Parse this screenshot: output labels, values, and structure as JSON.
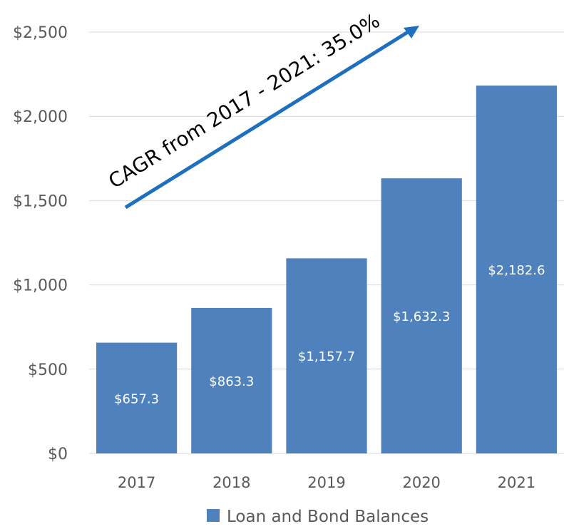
{
  "chart_data": {
    "type": "bar",
    "categories": [
      "2017",
      "2018",
      "2019",
      "2020",
      "2021"
    ],
    "series": [
      {
        "name": "Loan and Bond Balances",
        "values": [
          657.3,
          863.3,
          1157.7,
          1632.3,
          2182.6
        ],
        "labels": [
          "$657.3",
          "$863.3",
          "$1,157.7",
          "$1,632.3",
          "$2,182.6"
        ],
        "color": "#4f81bd"
      }
    ],
    "ylim": [
      0,
      2500
    ],
    "yticks": [
      0,
      500,
      1000,
      1500,
      2000,
      2500
    ],
    "ytick_labels": [
      "$0",
      "$500",
      "$1,000",
      "$1,500",
      "$2,000",
      "$2,500"
    ],
    "grid": true,
    "legend": "bottom",
    "annotation": {
      "text": "CAGR from 2017 - 2021: 35.0%",
      "arrow_color": "#1f6fbf"
    }
  }
}
